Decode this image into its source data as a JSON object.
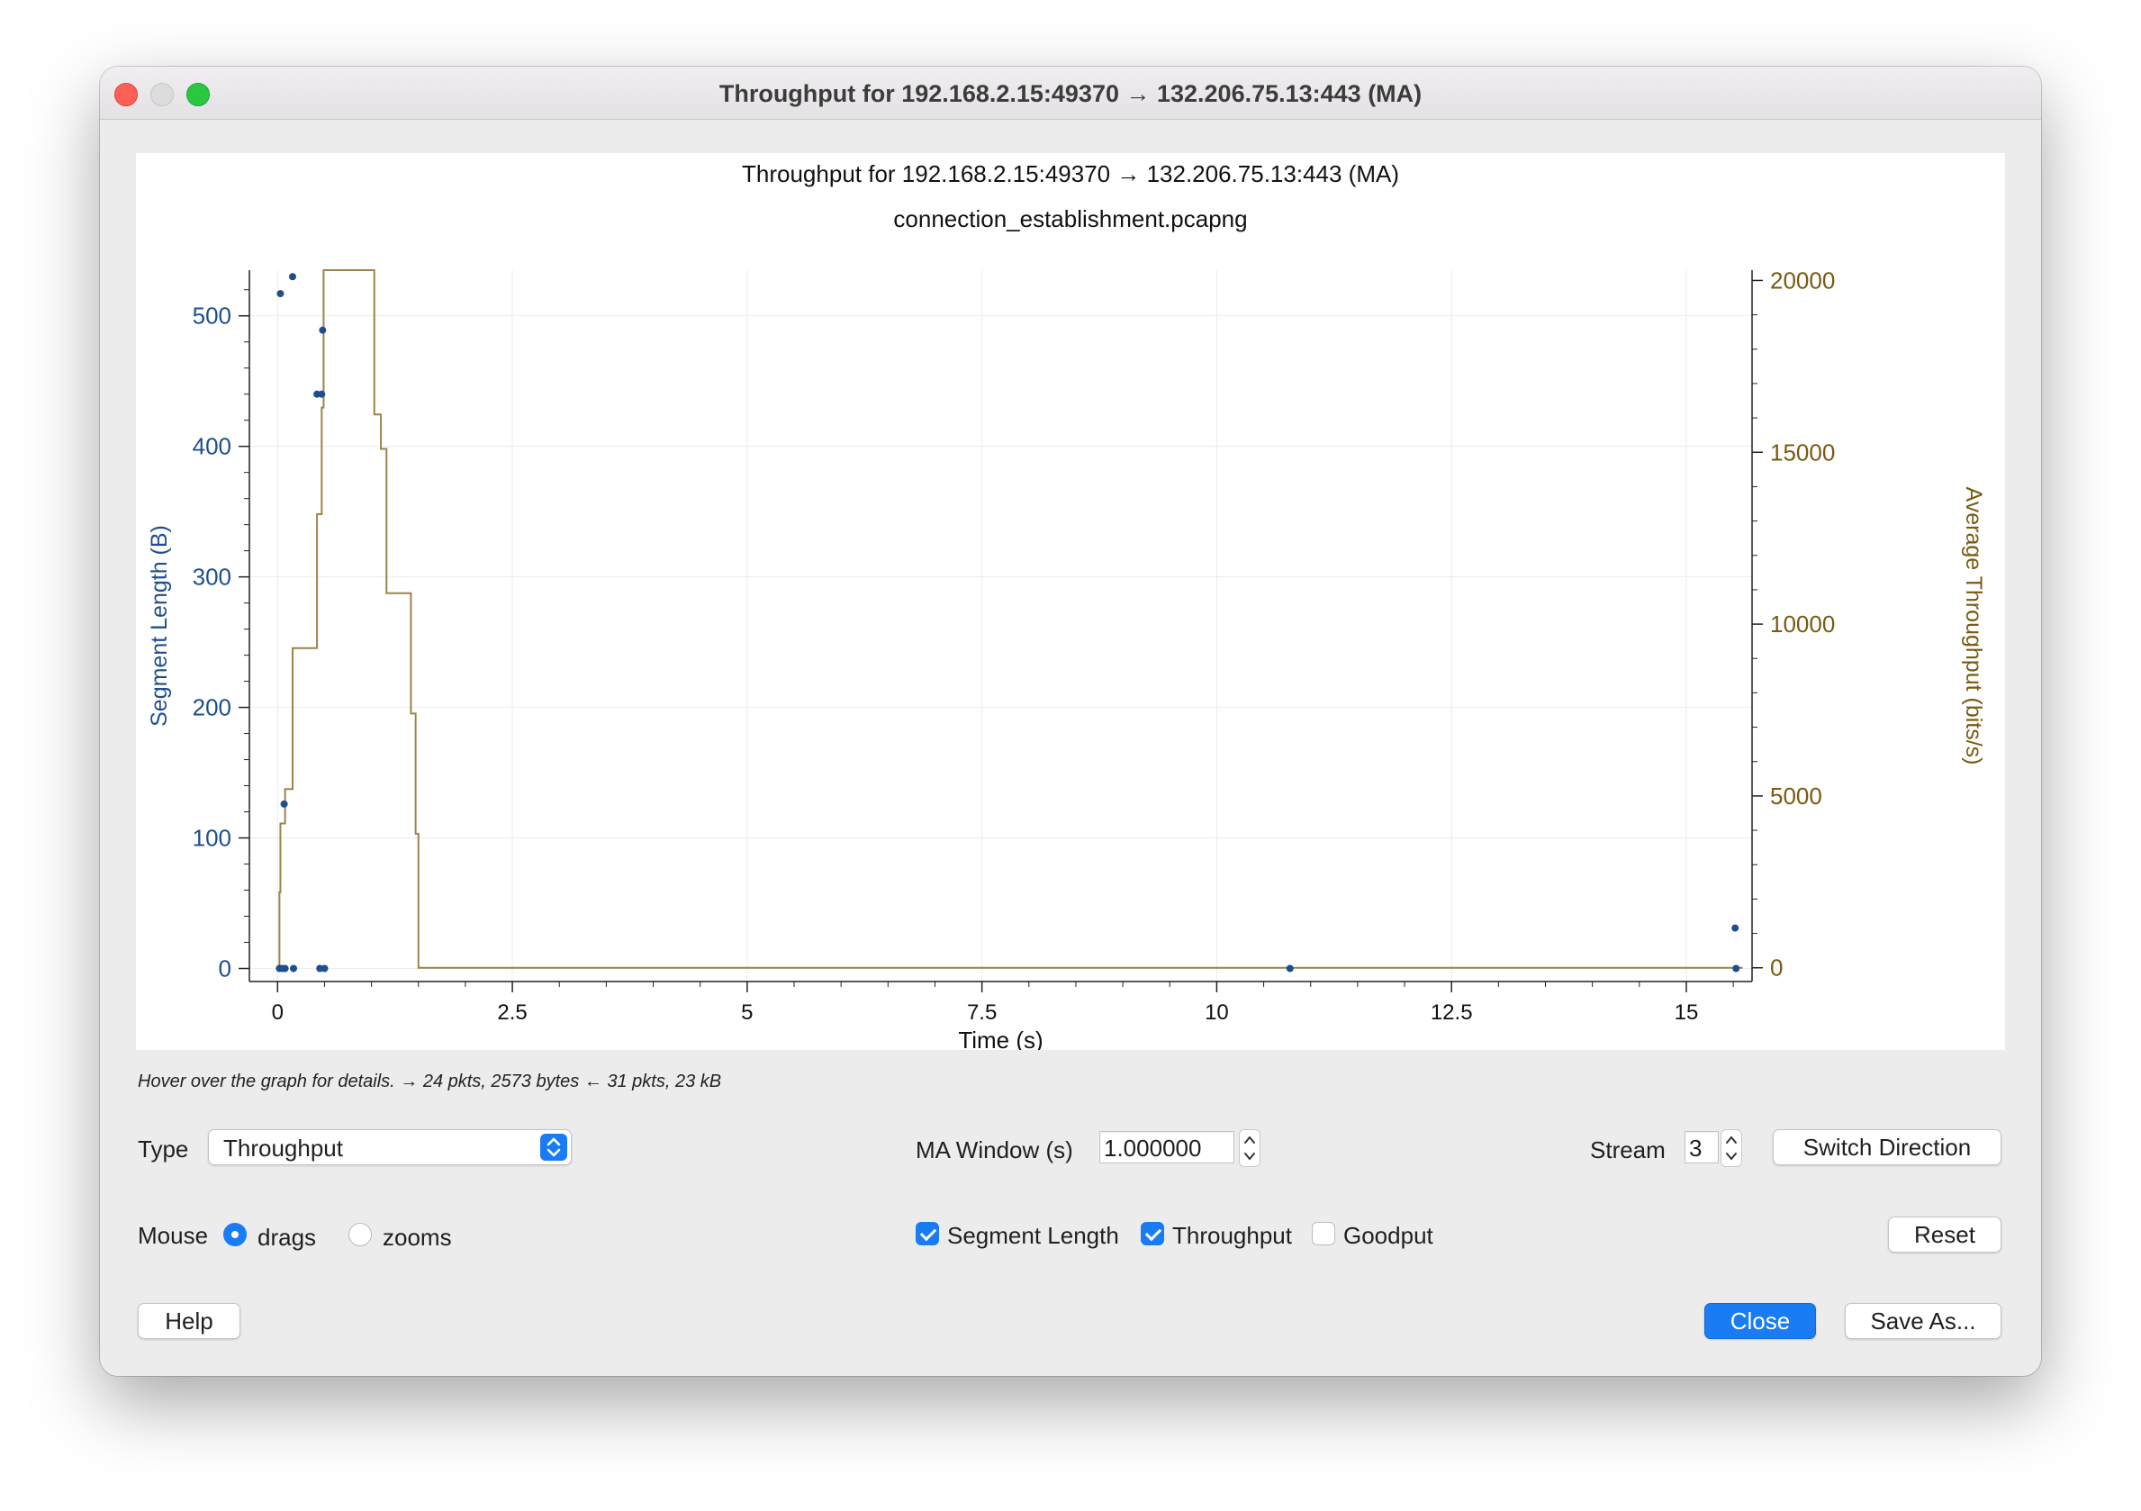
{
  "window": {
    "title": "Throughput for 192.168.2.15:49370 → 132.206.75.13:443 (MA)"
  },
  "chart_data": {
    "type": "scatter",
    "title": "Throughput for 192.168.2.15:49370 → 132.206.75.13:443 (MA)",
    "subtitle": "connection_establishment.pcapng",
    "xlabel": "Time (s)",
    "ylabel": "Segment Length (B)",
    "y2label": "Average Throughput (bits/s)",
    "xlim": [
      -0.3,
      15.7
    ],
    "ylim": [
      -10,
      535
    ],
    "y2lim": [
      -400,
      20300
    ],
    "x_ticks": [
      "0",
      "2.5",
      "5",
      "7.5",
      "10",
      "12.5",
      "15"
    ],
    "x_tick_values": [
      0,
      2.5,
      5,
      7.5,
      10,
      12.5,
      15
    ],
    "y_ticks": [
      "0",
      "100",
      "200",
      "300",
      "400",
      "500"
    ],
    "y_tick_values": [
      0,
      100,
      200,
      300,
      400,
      500
    ],
    "y2_ticks": [
      "0",
      "5000",
      "10000",
      "15000",
      "20000"
    ],
    "y2_tick_values": [
      0,
      5000,
      10000,
      15000,
      20000
    ],
    "grid": true,
    "colors": {
      "segment": "#1f4e8c",
      "throughput": "#9c844b",
      "axis_left": "#1f4e8c",
      "axis_right": "#7a5a10"
    },
    "series": [
      {
        "name": "Segment Length",
        "type": "scatter",
        "points": [
          [
            0.02,
            0
          ],
          [
            0.05,
            0
          ],
          [
            0.08,
            0
          ],
          [
            0.03,
            517
          ],
          [
            0.07,
            126
          ],
          [
            0.16,
            530
          ],
          [
            0.17,
            0
          ],
          [
            0.42,
            440
          ],
          [
            0.47,
            440
          ],
          [
            0.45,
            0
          ],
          [
            0.5,
            0
          ],
          [
            0.48,
            489
          ],
          [
            10.78,
            0
          ],
          [
            15.52,
            31
          ],
          [
            15.53,
            0
          ]
        ]
      },
      {
        "name": "Throughput",
        "type": "step",
        "points": [
          [
            0.02,
            0
          ],
          [
            0.02,
            2200
          ],
          [
            0.03,
            4200
          ],
          [
            0.08,
            5200
          ],
          [
            0.16,
            9300
          ],
          [
            0.42,
            13200
          ],
          [
            0.47,
            16300
          ],
          [
            0.49,
            20300
          ],
          [
            1.03,
            16100
          ],
          [
            1.1,
            15100
          ],
          [
            1.16,
            10900
          ],
          [
            1.42,
            7400
          ],
          [
            1.47,
            3900
          ],
          [
            1.5,
            0
          ],
          [
            15.6,
            0
          ]
        ]
      }
    ]
  },
  "status": {
    "hint": "Hover over the graph for details. → 24 pkts, 2573 bytes ← 31 pkts, 23 kB"
  },
  "controls": {
    "type_label": "Type",
    "type_value": "Throughput",
    "ma_label": "MA Window (s)",
    "ma_value": "1.000000",
    "stream_label": "Stream",
    "stream_value": "3",
    "switch_direction": "Switch Direction",
    "mouse_label": "Mouse",
    "drags_label": "drags",
    "zooms_label": "zooms",
    "segment_length_label": "Segment Length",
    "throughput_label": "Throughput",
    "goodput_label": "Goodput",
    "reset": "Reset",
    "help": "Help",
    "close": "Close",
    "save_as": "Save As..."
  }
}
